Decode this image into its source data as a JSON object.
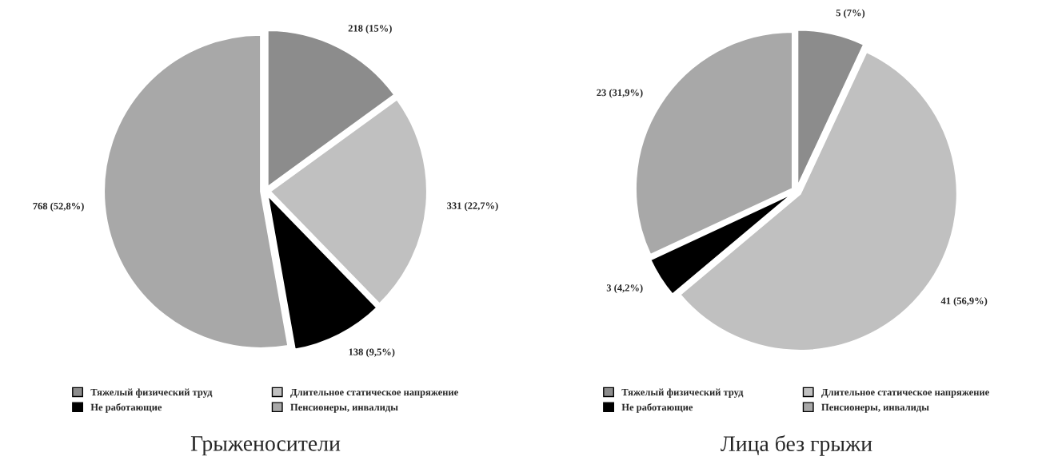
{
  "chart_data": [
    {
      "type": "pie",
      "title": "Грыженосители",
      "categories": [
        "Тяжелый физический труд",
        "Длительное статическое напряжение",
        "Не работающие",
        "Пенсионеры, инвалиды"
      ],
      "values": [
        218,
        331,
        138,
        768
      ],
      "value_labels": [
        "218 (15%)",
        "331 (22,7%)",
        "138 (9,5%)",
        "768 (52,8%)"
      ],
      "colors": [
        "#8c8c8c",
        "#c0c0c0",
        "#000000",
        "#a8a8a8"
      ],
      "legend": "bottom"
    },
    {
      "type": "pie",
      "title": "Лица без грыжи",
      "categories": [
        "Тяжелый физический труд",
        "Длительное статическое напряжение",
        "Не работающие",
        "Пенсионеры, инвалиды"
      ],
      "values": [
        5,
        41,
        3,
        23
      ],
      "value_labels": [
        "5 (7%)",
        "41 (56,9%)",
        "3 (4,2%)",
        "23 (31,9%)"
      ],
      "colors": [
        "#8c8c8c",
        "#c0c0c0",
        "#000000",
        "#a8a8a8"
      ],
      "legend": "bottom"
    }
  ]
}
